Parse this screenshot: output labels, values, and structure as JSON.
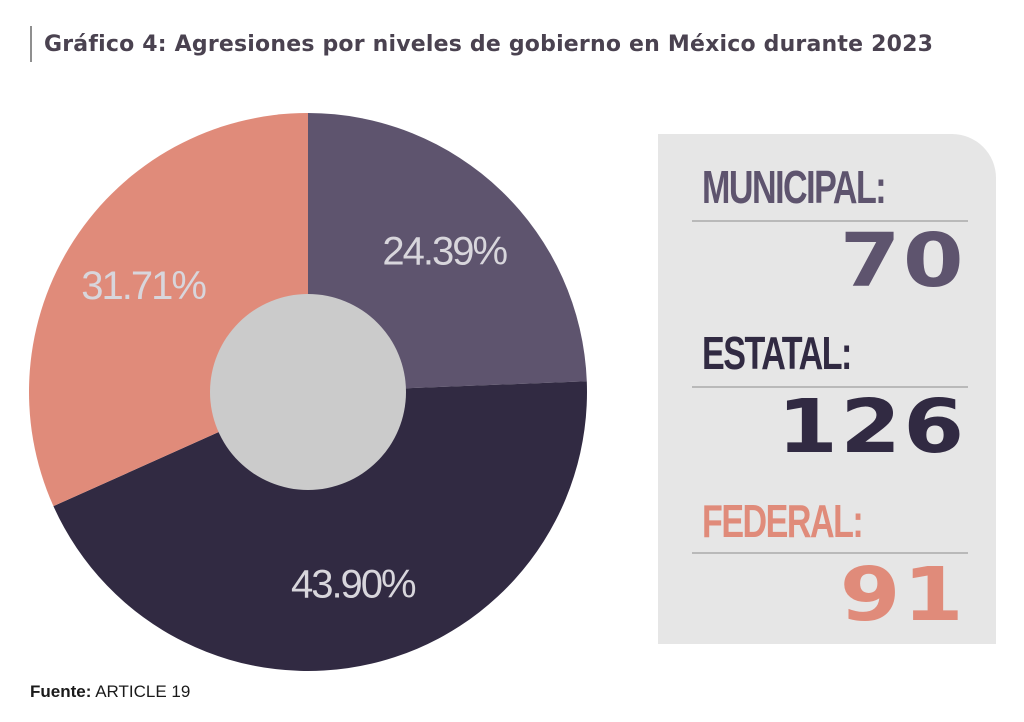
{
  "title": "Gráfico 4: Agresiones por niveles de gobierno en México durante 2023",
  "source": {
    "label": "Fuente:",
    "value": "ARTICLE 19"
  },
  "colors": {
    "municipal": "#5e546e",
    "estatal": "#312a42",
    "federal": "#e08b7a",
    "center": "#cbcbcb",
    "label_text": "#d8d6dc"
  },
  "chart_data": {
    "type": "pie",
    "style": "donut",
    "categories": [
      "Municipal",
      "Estatal",
      "Federal"
    ],
    "values": [
      24.39,
      43.9,
      31.71
    ],
    "labels": [
      "24.39%",
      "43.90%",
      "31.71%"
    ],
    "unit": "%"
  },
  "panel": {
    "items": [
      {
        "label": "MUNICIPAL:",
        "value": "70"
      },
      {
        "label": "ESTATAL:",
        "value": "126"
      },
      {
        "label": "FEDERAL:",
        "value": "91"
      }
    ]
  }
}
